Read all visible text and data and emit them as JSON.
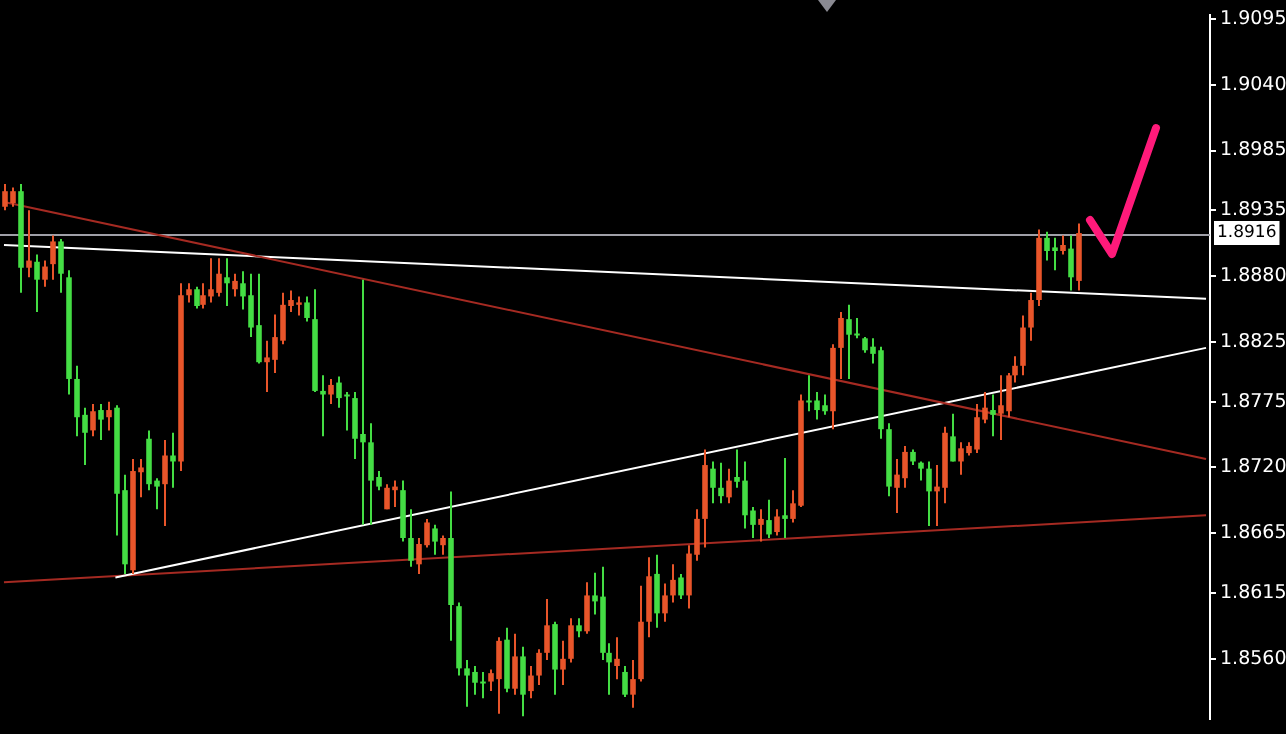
{
  "chart_data": {
    "type": "candlestick",
    "tick_labels": "y",
    "categories": [
      null,
      null,
      null,
      null,
      null,
      null,
      null,
      null,
      null,
      null,
      null,
      null,
      null,
      null,
      null,
      null,
      null,
      null,
      null,
      null,
      null,
      null,
      null,
      null,
      null,
      null,
      null,
      null,
      null,
      null,
      null,
      null,
      null,
      null,
      null,
      null,
      null,
      null,
      null,
      null,
      null,
      null,
      null,
      null,
      null,
      null,
      null,
      null,
      null,
      null,
      null,
      null,
      null,
      null,
      null,
      null,
      null,
      null,
      null,
      null,
      null,
      null,
      null,
      null,
      null,
      null,
      null,
      null,
      null,
      null,
      null,
      null,
      null,
      null,
      null,
      null,
      null,
      null,
      null,
      null,
      null,
      null,
      null,
      null,
      null,
      null,
      null,
      null,
      null,
      null,
      null,
      null,
      null,
      null,
      null,
      null,
      null,
      null,
      null,
      null,
      null,
      null,
      null,
      null,
      null,
      null,
      null,
      null,
      null,
      null,
      null,
      null,
      null,
      null,
      null,
      null,
      null,
      null,
      null,
      null,
      null,
      null,
      null,
      null,
      null,
      null,
      null,
      null,
      null,
      null,
      null,
      null,
      null,
      null,
      null,
      null,
      null,
      null,
      null,
      null,
      null,
      null,
      null,
      null,
      null,
      null,
      null,
      null,
      null,
      null,
      null,
      null
    ],
    "ohlc": [
      [
        1.8938,
        1.8957,
        1.8935,
        1.8951
      ],
      [
        1.8941,
        1.8954,
        1.8938,
        1.8951
      ],
      [
        1.8951,
        1.8957,
        1.8866,
        1.8887
      ],
      [
        1.8887,
        1.8935,
        1.8879,
        1.8893
      ],
      [
        1.8892,
        1.8898,
        1.885,
        1.8877
      ],
      [
        1.8877,
        1.8893,
        1.8871,
        1.8888
      ],
      [
        1.889,
        1.8914,
        1.8877,
        1.8909
      ],
      [
        1.8909,
        1.8911,
        1.8866,
        1.8882
      ],
      [
        1.8879,
        1.8885,
        1.8781,
        1.8794
      ],
      [
        1.8794,
        1.8805,
        1.8746,
        1.8762
      ],
      [
        1.8764,
        1.877,
        1.8722,
        1.8749
      ],
      [
        1.8751,
        1.8773,
        1.8746,
        1.8767
      ],
      [
        1.8768,
        1.8773,
        1.8743,
        1.876
      ],
      [
        1.8762,
        1.8775,
        1.8751,
        1.8768
      ],
      [
        1.877,
        1.8772,
        1.8663,
        1.8698
      ],
      [
        1.8701,
        1.8714,
        1.8631,
        1.8639
      ],
      [
        1.8634,
        1.8727,
        1.8631,
        1.8717
      ],
      [
        1.8716,
        1.8727,
        1.8695,
        1.872
      ],
      [
        1.8744,
        1.8751,
        1.8701,
        1.8706
      ],
      [
        1.8709,
        1.8711,
        1.8685,
        1.8704
      ],
      [
        1.8706,
        1.8743,
        1.8671,
        1.873
      ],
      [
        1.873,
        1.8749,
        1.8703,
        1.8725
      ],
      [
        1.8725,
        1.8874,
        1.8717,
        1.8864
      ],
      [
        1.8864,
        1.8874,
        1.8858,
        1.8869
      ],
      [
        1.8869,
        1.8871,
        1.8853,
        1.8855
      ],
      [
        1.8856,
        1.8874,
        1.8853,
        1.8864
      ],
      [
        1.8863,
        1.8895,
        1.8858,
        1.8869
      ],
      [
        1.8866,
        1.8895,
        1.8863,
        1.8882
      ],
      [
        1.8879,
        1.8895,
        1.8855,
        1.8874
      ],
      [
        1.8869,
        1.8882,
        1.8863,
        1.8876
      ],
      [
        1.8874,
        1.8884,
        1.8852,
        1.8863
      ],
      [
        1.8864,
        1.8882,
        1.8829,
        1.8837
      ],
      [
        1.8839,
        1.8882,
        1.8807,
        1.8808
      ],
      [
        1.8808,
        1.8826,
        1.8783,
        1.8812
      ],
      [
        1.881,
        1.8848,
        1.8799,
        1.8829
      ],
      [
        1.8826,
        1.8866,
        1.8823,
        1.8856
      ],
      [
        1.8855,
        1.8868,
        1.885,
        1.886
      ],
      [
        1.8856,
        1.8863,
        1.8847,
        1.8858
      ],
      [
        1.8858,
        1.8863,
        1.8842,
        1.8845
      ],
      [
        1.8844,
        1.8869,
        1.8783,
        1.8784
      ],
      [
        1.8784,
        1.8797,
        1.8746,
        1.8781
      ],
      [
        1.8781,
        1.8794,
        1.8773,
        1.8789
      ],
      [
        1.8791,
        1.8796,
        1.877,
        1.8778
      ],
      [
        1.8781,
        1.8783,
        1.8751,
        1.878
      ],
      [
        1.8778,
        1.8783,
        1.8727,
        1.8744
      ],
      [
        1.8748,
        1.8877,
        1.8672,
        1.8741
      ],
      [
        1.8741,
        1.8757,
        1.8672,
        1.8709
      ],
      [
        1.8712,
        1.8717,
        1.8701,
        1.8704
      ],
      [
        1.8685,
        1.8706,
        1.8685,
        1.8703
      ],
      [
        1.8701,
        1.8709,
        1.8687,
        1.8704
      ],
      [
        1.8701,
        1.8709,
        1.8658,
        1.8661
      ],
      [
        1.8661,
        1.8685,
        1.8637,
        1.8642
      ],
      [
        1.8639,
        1.8661,
        1.8631,
        1.8656
      ],
      [
        1.8655,
        1.8677,
        1.8653,
        1.8674
      ],
      [
        1.8669,
        1.8672,
        1.8647,
        1.8658
      ],
      [
        1.8655,
        1.8663,
        1.8647,
        1.8661
      ],
      [
        1.8661,
        1.87,
        1.8575,
        1.8605
      ],
      [
        1.8604,
        1.8607,
        1.8546,
        1.8552
      ],
      [
        1.8552,
        1.8559,
        1.852,
        1.8546
      ],
      [
        1.8549,
        1.8554,
        1.853,
        1.854
      ],
      [
        1.8541,
        1.8549,
        1.8527,
        1.854
      ],
      [
        1.8541,
        1.8551,
        1.8533,
        1.8548
      ],
      [
        1.8543,
        1.8578,
        1.8514,
        1.8575
      ],
      [
        1.8576,
        1.8586,
        1.8532,
        1.8535
      ],
      [
        1.8535,
        1.8581,
        1.853,
        1.8562
      ],
      [
        1.8562,
        1.857,
        1.8512,
        1.853
      ],
      [
        1.8533,
        1.8554,
        1.8527,
        1.8546
      ],
      [
        1.8546,
        1.8568,
        1.8538,
        1.8565
      ],
      [
        1.8565,
        1.861,
        1.8559,
        1.8588
      ],
      [
        1.8589,
        1.8591,
        1.853,
        1.8551
      ],
      [
        1.8551,
        1.8575,
        1.8538,
        1.856
      ],
      [
        1.856,
        1.8594,
        1.8557,
        1.8588
      ],
      [
        1.8588,
        1.8594,
        1.8578,
        1.8583
      ],
      [
        1.8583,
        1.8624,
        1.8581,
        1.8613
      ],
      [
        1.8613,
        1.8632,
        1.8597,
        1.8608
      ],
      [
        1.8612,
        1.8637,
        1.8559,
        1.8565
      ],
      [
        1.8565,
        1.8573,
        1.853,
        1.8557
      ],
      [
        1.8554,
        1.8578,
        1.8543,
        1.856
      ],
      [
        1.8549,
        1.8554,
        1.8528,
        1.853
      ],
      [
        1.853,
        1.8559,
        1.8519,
        1.8543
      ],
      [
        1.8543,
        1.8621,
        1.8541,
        1.8591
      ],
      [
        1.8591,
        1.8645,
        1.8578,
        1.8629
      ],
      [
        1.8631,
        1.8647,
        1.8586,
        1.8598
      ],
      [
        1.8598,
        1.8623,
        1.8591,
        1.8613
      ],
      [
        1.8613,
        1.8639,
        1.8607,
        1.8626
      ],
      [
        1.8628,
        1.8631,
        1.861,
        1.8613
      ],
      [
        1.8613,
        1.8655,
        1.8602,
        1.8648
      ],
      [
        1.8647,
        1.8685,
        1.8642,
        1.8677
      ],
      [
        1.8677,
        1.8735,
        1.8653,
        1.8722
      ],
      [
        1.8719,
        1.8725,
        1.869,
        1.8703
      ],
      [
        1.8703,
        1.8724,
        1.869,
        1.8696
      ],
      [
        1.8695,
        1.8719,
        1.869,
        1.8709
      ],
      [
        1.8712,
        1.8735,
        1.8703,
        1.8708
      ],
      [
        1.8709,
        1.8725,
        1.8669,
        1.868
      ],
      [
        1.8684,
        1.8687,
        1.8661,
        1.8672
      ],
      [
        1.8672,
        1.8685,
        1.8658,
        1.8677
      ],
      [
        1.8676,
        1.8693,
        1.8661,
        1.8664
      ],
      [
        1.8666,
        1.8685,
        1.8663,
        1.8679
      ],
      [
        1.868,
        1.8728,
        1.8661,
        1.8677
      ],
      [
        1.8677,
        1.8701,
        1.8674,
        1.869
      ],
      [
        1.8688,
        1.8781,
        1.8687,
        1.8776
      ],
      [
        1.8776,
        1.8797,
        1.8767,
        1.8775
      ],
      [
        1.8776,
        1.8783,
        1.876,
        1.8768
      ],
      [
        1.8772,
        1.8781,
        1.8764,
        1.8767
      ],
      [
        1.8767,
        1.8823,
        1.8752,
        1.882
      ],
      [
        1.882,
        1.885,
        1.8794,
        1.8845
      ],
      [
        1.8844,
        1.8856,
        1.8794,
        1.8831
      ],
      [
        1.8832,
        1.8845,
        1.8828,
        1.8831
      ],
      [
        1.8828,
        1.8829,
        1.8816,
        1.8818
      ],
      [
        1.8821,
        1.8828,
        1.8807,
        1.8815
      ],
      [
        1.8818,
        1.8821,
        1.8744,
        1.8752
      ],
      [
        1.8752,
        1.8757,
        1.8696,
        1.8704
      ],
      [
        1.8703,
        1.8727,
        1.8682,
        1.8714
      ],
      [
        1.8711,
        1.8738,
        1.8703,
        1.8733
      ],
      [
        1.8733,
        1.8735,
        1.8722,
        1.8725
      ],
      [
        1.8724,
        1.8725,
        1.8709,
        1.8719
      ],
      [
        1.8719,
        1.8725,
        1.8671,
        1.87
      ],
      [
        1.87,
        1.8722,
        1.8671,
        1.8704
      ],
      [
        1.8703,
        1.8754,
        1.869,
        1.8749
      ],
      [
        1.8746,
        1.8765,
        1.8725,
        1.8725
      ],
      [
        1.8725,
        1.8741,
        1.8714,
        1.8736
      ],
      [
        1.8732,
        1.8741,
        1.873,
        1.8738
      ],
      [
        1.8735,
        1.8773,
        1.8732,
        1.8762
      ],
      [
        1.876,
        1.8783,
        1.8757,
        1.877
      ],
      [
        1.8768,
        1.8781,
        1.8746,
        1.8764
      ],
      [
        1.8765,
        1.8797,
        1.8743,
        1.8772
      ],
      [
        1.8767,
        1.8799,
        1.8762,
        1.8797
      ],
      [
        1.8797,
        1.8813,
        1.8791,
        1.8805
      ],
      [
        1.8805,
        1.8847,
        1.8797,
        1.8837
      ],
      [
        1.8837,
        1.8866,
        1.8826,
        1.886
      ],
      [
        1.886,
        1.8919,
        1.8855,
        1.8912
      ],
      [
        1.8912,
        1.8917,
        1.8893,
        1.8901
      ],
      [
        1.8904,
        1.8912,
        1.8885,
        1.8901
      ],
      [
        1.8901,
        1.8914,
        1.8898,
        1.8906
      ],
      [
        1.8903,
        1.8914,
        1.8868,
        1.8879
      ],
      [
        1.8876,
        1.8924,
        1.8868,
        1.8916
      ],
      null,
      null,
      null,
      null,
      null,
      null,
      null,
      null,
      null,
      null,
      null,
      null,
      null,
      null,
      null,
      null
    ],
    "colors": [
      "#e8552a",
      "#e8552a",
      "#44dd44",
      "#e8552a",
      "#44dd44",
      "#e8552a",
      "#e8552a",
      "#44dd44",
      "#44dd44",
      "#44dd44",
      "#44dd44",
      "#e8552a",
      "#44dd44",
      "#e8552a",
      "#44dd44",
      "#44dd44",
      "#e8552a",
      "#e8552a",
      "#44dd44",
      "#44dd44",
      "#e8552a",
      "#44dd44",
      "#e8552a",
      "#e8552a",
      "#44dd44",
      "#e8552a",
      "#e8552a",
      "#e8552a",
      "#44dd44",
      "#e8552a",
      "#44dd44",
      "#44dd44",
      "#44dd44",
      "#e8552a",
      "#e8552a",
      "#e8552a",
      "#e8552a",
      "#e8552a",
      "#44dd44",
      "#44dd44",
      "#44dd44",
      "#e8552a",
      "#44dd44",
      "#44dd44",
      "#44dd44",
      "#44dd44",
      "#44dd44",
      "#44dd44",
      "#e8552a",
      "#e8552a",
      "#44dd44",
      "#44dd44",
      "#e8552a",
      "#e8552a",
      "#44dd44",
      "#e8552a",
      "#44dd44",
      "#44dd44",
      "#44dd44",
      "#44dd44",
      "#44dd44",
      "#e8552a",
      "#e8552a",
      "#44dd44",
      "#e8552a",
      "#44dd44",
      "#e8552a",
      "#e8552a",
      "#e8552a",
      "#44dd44",
      "#e8552a",
      "#e8552a",
      "#44dd44",
      "#e8552a",
      "#44dd44",
      "#44dd44",
      "#44dd44",
      "#e8552a",
      "#44dd44",
      "#e8552a",
      "#e8552a",
      "#e8552a",
      "#44dd44",
      "#e8552a",
      "#e8552a",
      "#44dd44",
      "#e8552a",
      "#e8552a",
      "#e8552a",
      "#44dd44",
      "#44dd44",
      "#e8552a",
      "#44dd44",
      "#44dd44",
      "#44dd44",
      "#e8552a",
      "#44dd44",
      "#e8552a",
      "#44dd44",
      "#e8552a",
      "#e8552a",
      "#44dd44",
      "#44dd44",
      "#44dd44",
      "#e8552a",
      "#e8552a",
      "#44dd44",
      "#44dd44",
      "#44dd44",
      "#44dd44",
      "#44dd44",
      "#44dd44",
      "#e8552a",
      "#e8552a",
      "#44dd44",
      "#44dd44",
      "#44dd44",
      "#e8552a",
      "#e8552a",
      "#44dd44",
      "#e8552a",
      "#e8552a",
      "#e8552a",
      "#e8552a",
      "#44dd44",
      "#e8552a",
      "#e8552a",
      "#e8552a",
      "#e8552a",
      "#e8552a",
      "#e8552a",
      "#44dd44",
      "#44dd44",
      "#e8552a",
      "#44dd44",
      "#e8552a",
      null,
      null,
      null,
      null,
      null,
      null,
      null,
      null,
      null,
      null,
      null,
      null,
      null,
      null,
      null,
      null
    ],
    "series": [
      {
        "type": "line",
        "color": "#a52a22",
        "values": [
          1.8942,
          null,
          null,
          null,
          null,
          null,
          null,
          null,
          null,
          null,
          null,
          null,
          null,
          null,
          null,
          null,
          null,
          null,
          null,
          null,
          null,
          null,
          null,
          null,
          null,
          null,
          null,
          null,
          null,
          null,
          null,
          null,
          null,
          null,
          null,
          null,
          null,
          null,
          null,
          null,
          null,
          null,
          null,
          null,
          null,
          null,
          null,
          null,
          null,
          null,
          null,
          null,
          null,
          null,
          null,
          null,
          null,
          null,
          null,
          null,
          null,
          null,
          null,
          null,
          null,
          null,
          null,
          null,
          null,
          null,
          null,
          null,
          null,
          null,
          null,
          null,
          null,
          null,
          null,
          null,
          null,
          null,
          null,
          null,
          null,
          null,
          null,
          null,
          null,
          null,
          null,
          null,
          null,
          null,
          null,
          null,
          null,
          null,
          null,
          null,
          null,
          null,
          null,
          null,
          null,
          null,
          null,
          null,
          null,
          null,
          null,
          null,
          null,
          null,
          null,
          null,
          null,
          null,
          null,
          null,
          null,
          null,
          null,
          null,
          null,
          null,
          null,
          null,
          null,
          null,
          null,
          null,
          null,
          null,
          null,
          null,
          null,
          null,
          null,
          null,
          null,
          null,
          null,
          null,
          null,
          null,
          null,
          null,
          null,
          null,
          null,
          1.8727
        ]
      },
      {
        "type": "line",
        "color": "#ffffff",
        "values": [
          1.8906,
          null,
          null,
          null,
          null,
          null,
          null,
          null,
          null,
          null,
          null,
          null,
          null,
          null,
          null,
          null,
          null,
          null,
          null,
          null,
          null,
          null,
          null,
          null,
          null,
          null,
          null,
          null,
          null,
          null,
          null,
          null,
          null,
          null,
          null,
          null,
          null,
          null,
          null,
          null,
          null,
          null,
          null,
          null,
          null,
          null,
          null,
          null,
          null,
          null,
          null,
          null,
          null,
          null,
          null,
          null,
          null,
          null,
          null,
          null,
          null,
          null,
          null,
          null,
          null,
          null,
          null,
          null,
          null,
          null,
          null,
          null,
          null,
          null,
          null,
          null,
          null,
          null,
          null,
          null,
          null,
          null,
          null,
          null,
          null,
          null,
          null,
          null,
          null,
          null,
          null,
          null,
          null,
          null,
          null,
          null,
          null,
          null,
          null,
          null,
          null,
          null,
          null,
          null,
          null,
          null,
          null,
          null,
          null,
          null,
          null,
          null,
          null,
          null,
          null,
          null,
          null,
          null,
          null,
          null,
          null,
          null,
          null,
          null,
          null,
          null,
          null,
          null,
          null,
          null,
          null,
          null,
          null,
          null,
          null,
          null,
          null,
          null,
          null,
          null,
          null,
          null,
          null,
          null,
          null,
          null,
          null,
          null,
          null,
          null,
          null,
          1.8861
        ]
      },
      {
        "type": "line",
        "color": "#ffffff",
        "values": [
          null,
          null,
          null,
          null,
          null,
          null,
          null,
          null,
          null,
          null,
          null,
          null,
          null,
          null,
          1.8628,
          null,
          null,
          null,
          null,
          null,
          null,
          null,
          null,
          null,
          null,
          null,
          null,
          null,
          null,
          null,
          null,
          null,
          null,
          null,
          null,
          null,
          null,
          null,
          null,
          null,
          null,
          null,
          null,
          null,
          null,
          null,
          null,
          null,
          null,
          null,
          null,
          null,
          null,
          null,
          null,
          null,
          null,
          null,
          null,
          null,
          null,
          null,
          null,
          null,
          null,
          null,
          null,
          null,
          null,
          null,
          null,
          null,
          null,
          null,
          null,
          null,
          null,
          null,
          null,
          null,
          null,
          null,
          null,
          null,
          null,
          null,
          null,
          null,
          null,
          null,
          null,
          null,
          null,
          null,
          null,
          null,
          null,
          null,
          null,
          null,
          null,
          null,
          null,
          null,
          null,
          null,
          null,
          null,
          null,
          null,
          null,
          null,
          null,
          null,
          null,
          null,
          null,
          null,
          null,
          null,
          null,
          null,
          null,
          null,
          null,
          null,
          null,
          null,
          null,
          null,
          null,
          null,
          null,
          null,
          null,
          null,
          null,
          null,
          null,
          null,
          null,
          null,
          null,
          null,
          null,
          null,
          null,
          null,
          null,
          null,
          null,
          1.882
        ]
      },
      {
        "type": "line",
        "color": "#a52a22",
        "values": [
          1.8624,
          null,
          null,
          null,
          null,
          null,
          null,
          null,
          null,
          null,
          null,
          null,
          null,
          null,
          null,
          null,
          null,
          null,
          null,
          null,
          null,
          null,
          null,
          null,
          null,
          null,
          null,
          null,
          null,
          null,
          null,
          null,
          null,
          null,
          null,
          null,
          null,
          null,
          null,
          null,
          null,
          null,
          null,
          null,
          null,
          null,
          null,
          null,
          null,
          null,
          null,
          null,
          null,
          null,
          null,
          null,
          null,
          null,
          null,
          null,
          null,
          null,
          null,
          null,
          null,
          null,
          null,
          null,
          null,
          null,
          null,
          null,
          null,
          null,
          null,
          null,
          null,
          null,
          null,
          null,
          null,
          null,
          null,
          null,
          null,
          null,
          null,
          null,
          null,
          null,
          null,
          null,
          null,
          null,
          null,
          null,
          null,
          null,
          null,
          null,
          null,
          null,
          null,
          null,
          null,
          null,
          null,
          null,
          null,
          null,
          null,
          null,
          null,
          null,
          null,
          null,
          null,
          null,
          null,
          null,
          null,
          null,
          null,
          null,
          null,
          null,
          null,
          null,
          null,
          null,
          null,
          null,
          null,
          null,
          null,
          null,
          null,
          null,
          null,
          null,
          null,
          null,
          null,
          null,
          null,
          null,
          null,
          null,
          null,
          null,
          null,
          1.868
        ]
      }
    ],
    "ref_lines": [
      {
        "axis": "y",
        "value": 1.8916,
        "label": "1.8916",
        "color": "#a0a0a8"
      }
    ],
    "ylim": [
      1.851,
      1.9098
    ],
    "yticks": [
      1.9095,
      {
        "value": 1.904,
        "label": "1.9040"
      },
      1.8985,
      1.8935,
      {
        "value": 1.888,
        "label": "1.8880"
      },
      1.8825,
      1.8775,
      {
        "value": 1.872,
        "label": "1.8720"
      },
      1.8665,
      1.8615,
      {
        "value": 1.856,
        "label": "1.8560"
      }
    ]
  }
}
